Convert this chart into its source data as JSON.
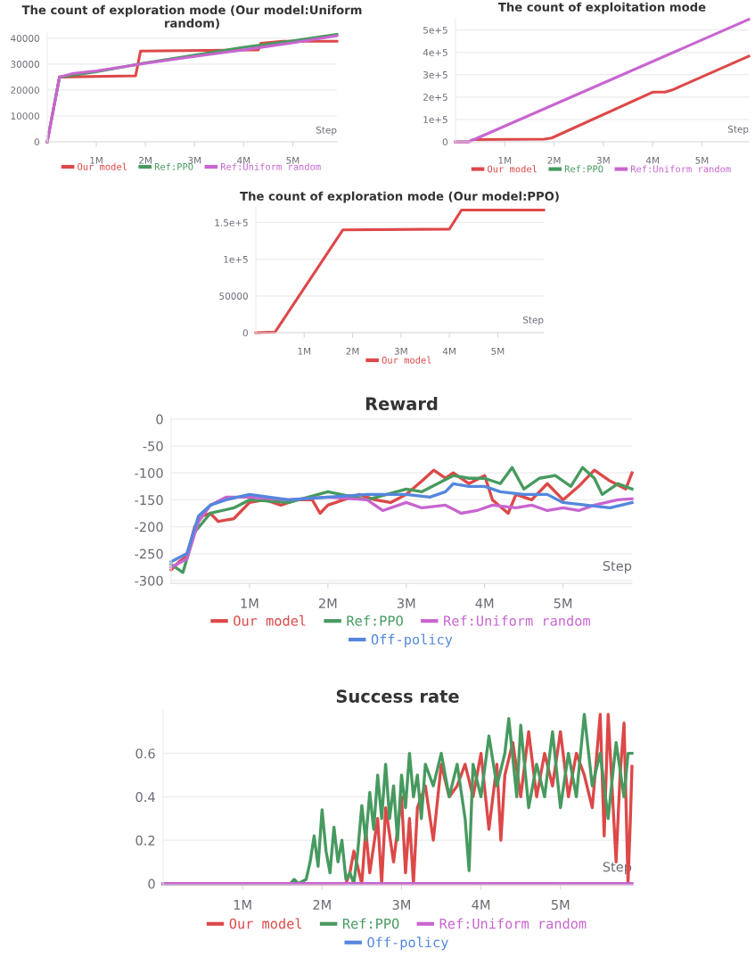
{
  "chart_data": [
    {
      "type": "line",
      "title": "The count of exploration mode (Our model:Uniform random)",
      "xlabel": "Step",
      "xlim": [
        0,
        5900000
      ],
      "ylim": [
        0,
        42000
      ],
      "xticks": [
        {
          "value": 1000000,
          "label": "1M"
        },
        {
          "value": 2000000,
          "label": "2M"
        },
        {
          "value": 3000000,
          "label": "3M"
        },
        {
          "value": 4000000,
          "label": "4M"
        },
        {
          "value": 5000000,
          "label": "5M"
        }
      ],
      "yticks": [
        0,
        10000,
        20000,
        30000,
        40000
      ],
      "grid": "y",
      "legend": "bottom",
      "series": [
        {
          "name": "Our model",
          "color": "#dd4848",
          "x": [
            0,
            250000,
            1800000,
            1900000,
            4300000,
            4350000,
            4800000,
            5900000
          ],
          "values": [
            0,
            25000,
            25500,
            35000,
            35500,
            38000,
            38800,
            38800
          ]
        },
        {
          "name": "Ref:PPO",
          "color": "#479a5f",
          "x": [
            0,
            250000,
            1000000,
            2000000,
            3000000,
            4000000,
            5000000,
            5900000
          ],
          "values": [
            0,
            25000,
            27000,
            30500,
            33500,
            36500,
            39000,
            41500
          ]
        },
        {
          "name": "Ref:Uniform random",
          "color": "#c865d0",
          "x": [
            0,
            250000,
            500000,
            1000000,
            2000000,
            3000000,
            4000000,
            5000000,
            5900000
          ],
          "values": [
            0,
            25000,
            26300,
            27400,
            30300,
            33000,
            35500,
            38200,
            41000
          ]
        }
      ]
    },
    {
      "type": "line",
      "title": "The count of exploitation mode",
      "xlabel": "Step",
      "xlim": [
        0,
        5950000
      ],
      "ylim": [
        0,
        550000
      ],
      "xticks": [
        {
          "value": 1000000,
          "label": "1M"
        },
        {
          "value": 2000000,
          "label": "2M"
        },
        {
          "value": 3000000,
          "label": "3M"
        },
        {
          "value": 4000000,
          "label": "4M"
        },
        {
          "value": 5000000,
          "label": "5M"
        }
      ],
      "yticks": [
        0,
        {
          "value": 100000,
          "label": "1e+5"
        },
        {
          "value": 200000,
          "label": "2e+5"
        },
        {
          "value": 300000,
          "label": "3e+5"
        },
        {
          "value": 400000,
          "label": "4e+5"
        },
        {
          "value": 500000,
          "label": "5e+5"
        }
      ],
      "grid": "y",
      "legend": "bottom",
      "series": [
        {
          "name": "Our model",
          "color": "#dd4848",
          "x": [
            0,
            270000,
            350000,
            1800000,
            1950000,
            4000000,
            4250000,
            4400000,
            5950000
          ],
          "values": [
            0,
            0,
            10000,
            12000,
            17000,
            222000,
            222000,
            232000,
            383000
          ]
        },
        {
          "name": "Ref:PPO",
          "color": "#479a5f"
        },
        {
          "name": "Ref:Uniform random",
          "color": "#c865d0",
          "x": [
            0,
            270000,
            5950000
          ],
          "values": [
            0,
            0,
            547000
          ]
        }
      ]
    },
    {
      "type": "line",
      "title": "The count of exploration mode (Our model:PPO)",
      "xlabel": "Step",
      "xlim": [
        0,
        5950000
      ],
      "ylim": [
        0,
        170000
      ],
      "xticks": [
        {
          "value": 1000000,
          "label": "1M"
        },
        {
          "value": 2000000,
          "label": "2M"
        },
        {
          "value": 3000000,
          "label": "3M"
        },
        {
          "value": 4000000,
          "label": "4M"
        },
        {
          "value": 5000000,
          "label": "5M"
        }
      ],
      "yticks": [
        0,
        50000,
        {
          "value": 100000,
          "label": "1e+5"
        },
        {
          "value": 150000,
          "label": "1.5e+5"
        }
      ],
      "grid": "y",
      "legend": "bottom",
      "series": [
        {
          "name": "Our model",
          "color": "#dd4848",
          "x": [
            0,
            400000,
            1800000,
            4000000,
            4250000,
            5950000
          ],
          "values": [
            0,
            1000,
            140000,
            141000,
            167000,
            167000
          ]
        }
      ]
    },
    {
      "type": "line",
      "title": "Reward",
      "xlabel": "Step",
      "xlim": [
        0,
        5880000
      ],
      "ylim": [
        -305,
        3
      ],
      "xticks": [
        {
          "value": 1000000,
          "label": "1M"
        },
        {
          "value": 2000000,
          "label": "2M"
        },
        {
          "value": 3000000,
          "label": "3M"
        },
        {
          "value": 4000000,
          "label": "4M"
        },
        {
          "value": 5000000,
          "label": "5M"
        }
      ],
      "yticks": [
        -300,
        -250,
        -200,
        -150,
        -100,
        -50,
        0
      ],
      "grid": "y",
      "legend": "bottom",
      "series": [
        {
          "name": "Our model",
          "color": "#dd4848",
          "x": [
            0,
            100000,
            200000,
            300000,
            400000,
            500000,
            600000,
            800000,
            1000000,
            1200000,
            1400000,
            1600000,
            1800000,
            1900000,
            2000000,
            2200000,
            2400000,
            2600000,
            2800000,
            3000000,
            3200000,
            3350000,
            3500000,
            3600000,
            3800000,
            4000000,
            4100000,
            4300000,
            4400000,
            4600000,
            4800000,
            5000000,
            5200000,
            5400000,
            5600000,
            5800000,
            5880000
          ],
          "values": [
            -280,
            -265,
            -255,
            -200,
            -180,
            -175,
            -190,
            -185,
            -155,
            -150,
            -160,
            -150,
            -150,
            -175,
            -160,
            -150,
            -140,
            -150,
            -155,
            -140,
            -115,
            -95,
            -110,
            -100,
            -120,
            -105,
            -150,
            -175,
            -140,
            -150,
            -120,
            -150,
            -125,
            -95,
            -115,
            -130,
            -100
          ]
        },
        {
          "name": "Ref:PPO",
          "color": "#479a5f",
          "x": [
            0,
            150000,
            300000,
            500000,
            800000,
            1000000,
            1500000,
            2000000,
            2500000,
            3000000,
            3200000,
            3400000,
            3600000,
            3800000,
            4000000,
            4200000,
            4350000,
            4500000,
            4700000,
            4900000,
            5100000,
            5250000,
            5400000,
            5500000,
            5700000,
            5880000
          ],
          "values": [
            -270,
            -285,
            -210,
            -175,
            -165,
            -150,
            -155,
            -135,
            -150,
            -130,
            -135,
            -120,
            -105,
            -110,
            -110,
            -120,
            -90,
            -130,
            -110,
            -105,
            -125,
            -90,
            -110,
            -140,
            -120,
            -130
          ]
        },
        {
          "name": "Ref:Uniform random",
          "color": "#c865d0",
          "x": [
            0,
            200000,
            350000,
            500000,
            700000,
            1000000,
            1500000,
            2000000,
            2500000,
            2700000,
            3000000,
            3200000,
            3500000,
            3700000,
            3900000,
            4100000,
            4400000,
            4600000,
            4800000,
            5000000,
            5200000,
            5400000,
            5700000,
            5880000
          ],
          "values": [
            -275,
            -260,
            -190,
            -160,
            -145,
            -145,
            -150,
            -145,
            -150,
            -170,
            -155,
            -165,
            -160,
            -175,
            -170,
            -160,
            -165,
            -160,
            -170,
            -165,
            -170,
            -160,
            -150,
            -148
          ]
        },
        {
          "name": "Off-policy",
          "color": "#5387dd",
          "x": [
            0,
            200000,
            350000,
            500000,
            700000,
            1000000,
            1500000,
            2000000,
            2500000,
            3000000,
            3300000,
            3500000,
            3600000,
            3800000,
            4000000,
            4200000,
            4500000,
            4800000,
            5000000,
            5300000,
            5600000,
            5880000
          ],
          "values": [
            -265,
            -250,
            -180,
            -160,
            -150,
            -140,
            -150,
            -145,
            -140,
            -140,
            -145,
            -135,
            -120,
            -125,
            -125,
            -135,
            -140,
            -140,
            -155,
            -160,
            -165,
            -155
          ]
        }
      ]
    },
    {
      "type": "line",
      "title": "Success rate",
      "xlabel": "Step",
      "xlim": [
        0,
        5900000
      ],
      "ylim": [
        -0.005,
        0.8
      ],
      "xticks": [
        {
          "value": 1000000,
          "label": "1M"
        },
        {
          "value": 2000000,
          "label": "2M"
        },
        {
          "value": 3000000,
          "label": "3M"
        },
        {
          "value": 4000000,
          "label": "4M"
        },
        {
          "value": 5000000,
          "label": "5M"
        }
      ],
      "yticks": [
        0,
        0.2,
        0.4,
        0.6
      ],
      "grid": "y",
      "legend": "bottom",
      "series": [
        {
          "name": "Our model",
          "color": "#dd4848",
          "x": [
            0,
            2300000,
            2350000,
            2400000,
            2500000,
            2550000,
            2600000,
            2700000,
            2750000,
            2800000,
            2900000,
            3000000,
            3050000,
            3100000,
            3150000,
            3200000,
            3300000,
            3400000,
            3500000,
            3600000,
            3700000,
            3800000,
            3900000,
            4000000,
            4100000,
            4200000,
            4250000,
            4300000,
            4400000,
            4500000,
            4600000,
            4700000,
            4800000,
            4900000,
            5000000,
            5100000,
            5200000,
            5300000,
            5400000,
            5500000,
            5550000,
            5600000,
            5700000,
            5750000,
            5800000,
            5850000,
            5880000,
            5900000
          ],
          "values": [
            0,
            0,
            0.05,
            0.15,
            0,
            0.25,
            0.05,
            0.3,
            0,
            0.35,
            0.1,
            0.4,
            0.05,
            0.3,
            0,
            0.35,
            0.45,
            0.2,
            0.55,
            0.4,
            0.45,
            0.55,
            0.4,
            0.6,
            0.25,
            0.55,
            0.2,
            0.5,
            0.65,
            0.4,
            0.7,
            0.4,
            0.6,
            0.45,
            0.7,
            0.4,
            0.6,
            0.5,
            0.35,
            0.78,
            0.22,
            0.78,
            0.1,
            0.5,
            0.74,
            0,
            0.3,
            0.54
          ]
        },
        {
          "name": "Ref:PPO",
          "color": "#479a5f",
          "x": [
            0,
            1600000,
            1650000,
            1700000,
            1800000,
            1850000,
            1900000,
            1950000,
            2000000,
            2050000,
            2100000,
            2150000,
            2200000,
            2250000,
            2300000,
            2350000,
            2400000,
            2450000,
            2500000,
            2550000,
            2600000,
            2650000,
            2700000,
            2750000,
            2800000,
            2850000,
            2900000,
            2950000,
            3000000,
            3050000,
            3100000,
            3150000,
            3200000,
            3250000,
            3300000,
            3400000,
            3500000,
            3600000,
            3700000,
            3800000,
            3850000,
            3900000,
            4000000,
            4100000,
            4200000,
            4300000,
            4350000,
            4450000,
            4500000,
            4600000,
            4700000,
            4800000,
            4900000,
            5000000,
            5100000,
            5200000,
            5300000,
            5400000,
            5500000,
            5600000,
            5700000,
            5800000,
            5850000,
            5900000
          ],
          "values": [
            0,
            0,
            0.02,
            0,
            0.02,
            0.1,
            0.22,
            0.08,
            0.34,
            0.15,
            0.05,
            0.26,
            0.1,
            0.2,
            0.02,
            0.05,
            0,
            0.15,
            0.36,
            0.2,
            0.42,
            0.25,
            0.5,
            0.3,
            0.55,
            0.3,
            0.45,
            0.2,
            0.5,
            0.35,
            0.6,
            0.4,
            0.5,
            0.3,
            0.55,
            0.45,
            0.6,
            0.4,
            0.55,
            0.3,
            0.06,
            0.55,
            0.4,
            0.68,
            0.45,
            0.6,
            0.76,
            0.4,
            0.73,
            0.35,
            0.55,
            0.4,
            0.7,
            0.35,
            0.6,
            0.4,
            0.78,
            0.45,
            0.6,
            0.3,
            0.65,
            0.4,
            0.6,
            0.6
          ]
        },
        {
          "name": "Ref:Uniform random",
          "color": "#c865d0",
          "x": [
            0,
            5900000
          ],
          "values": [
            0,
            0
          ]
        },
        {
          "name": "Off-policy",
          "color": "#5387dd"
        }
      ]
    }
  ]
}
